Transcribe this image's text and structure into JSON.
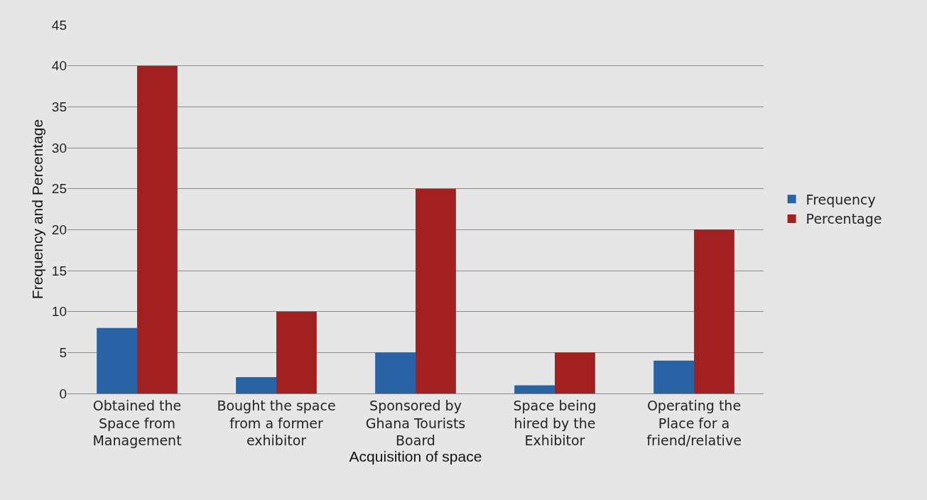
{
  "chart_data": {
    "type": "bar",
    "xlabel": "Acquisition of space",
    "ylabel": "Frequency and Percentage",
    "categories": [
      "Obtained the Space from Management",
      "Bought the space from a former exhibitor",
      "Sponsored by Ghana Tourists Board",
      "Space being hired by the Exhibitor",
      "Operating the Place for a friend/relative"
    ],
    "series": [
      {
        "name": "Frequency",
        "color": "#2a62a6",
        "values": [
          8,
          2,
          5,
          1,
          4
        ]
      },
      {
        "name": "Percentage",
        "color": "#a32021",
        "values": [
          40,
          10,
          25,
          5,
          20
        ]
      }
    ],
    "ylim": [
      0,
      45
    ],
    "yticks": [
      0,
      5,
      10,
      15,
      20,
      25,
      30,
      35,
      40,
      45
    ],
    "grid": "y",
    "legend": "right"
  }
}
